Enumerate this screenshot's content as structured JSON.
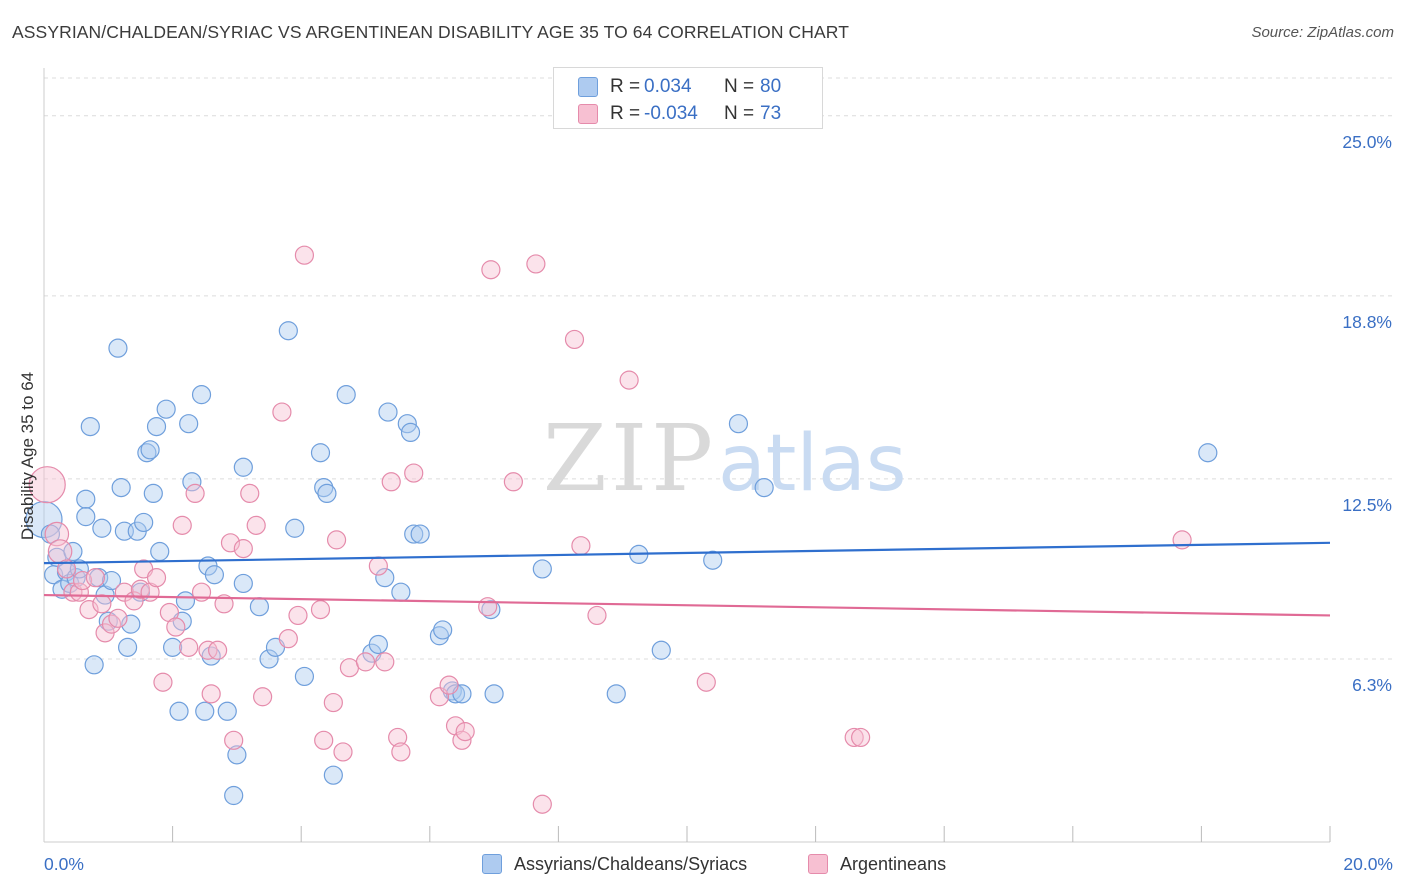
{
  "title": "ASSYRIAN/CHALDEAN/SYRIAC VS ARGENTINEAN DISABILITY AGE 35 TO 64 CORRELATION CHART",
  "source": "Source: ZipAtlas.com",
  "watermark": {
    "zip": "ZIP",
    "atlas": "atlas"
  },
  "legend": {
    "series1": {
      "r_label": "R =",
      "r_value": "0.034",
      "n_label": "N =",
      "n_value": "80"
    },
    "series2": {
      "r_label": "R =",
      "r_value": "-0.034",
      "n_label": "N =",
      "n_value": "73"
    }
  },
  "colors": {
    "series1_fill": "#aecbf0",
    "series1_stroke": "#6f9fdc",
    "series1_line": "#2f6fce",
    "series2_fill": "#f7c0d2",
    "series2_stroke": "#e58bab",
    "series2_line": "#e06a95",
    "axis_text": "#3a6fc4",
    "grid": "#dcdcdc"
  },
  "chart_data": {
    "type": "scatter",
    "title": "ASSYRIAN/CHALDEAN/SYRIAC VS ARGENTINEAN DISABILITY AGE 35 TO 64 CORRELATION CHART",
    "xlabel": "",
    "ylabel": "Disability Age 35 to 64",
    "xlim": [
      0,
      20
    ],
    "ylim": [
      0,
      26.3
    ],
    "x_tick_labels": [
      "0.0%",
      "20.0%"
    ],
    "y_ticks": [
      6.3,
      12.5,
      18.8,
      25.0
    ],
    "y_tick_labels": [
      "6.3%",
      "12.5%",
      "18.8%",
      "25.0%"
    ],
    "grid": true,
    "legend_position": "bottom",
    "series": [
      {
        "name": "Assyrians/Chaldeans/Syriacs",
        "r": 0.034,
        "n": 80,
        "trend": {
          "x": [
            0,
            20
          ],
          "y": [
            9.6,
            10.3
          ]
        },
        "points": [
          {
            "x": 0.0,
            "y": 11.1,
            "s": 2
          },
          {
            "x": 0.1,
            "y": 10.6
          },
          {
            "x": 0.15,
            "y": 9.2
          },
          {
            "x": 0.2,
            "y": 9.8
          },
          {
            "x": 0.28,
            "y": 8.7
          },
          {
            "x": 0.35,
            "y": 9.3
          },
          {
            "x": 0.4,
            "y": 8.9
          },
          {
            "x": 0.45,
            "y": 10.0
          },
          {
            "x": 0.5,
            "y": 9.1
          },
          {
            "x": 0.55,
            "y": 9.4
          },
          {
            "x": 0.65,
            "y": 11.8
          },
          {
            "x": 0.65,
            "y": 11.2
          },
          {
            "x": 0.72,
            "y": 14.3
          },
          {
            "x": 0.78,
            "y": 6.1
          },
          {
            "x": 0.85,
            "y": 9.1
          },
          {
            "x": 0.9,
            "y": 10.8
          },
          {
            "x": 0.95,
            "y": 8.5
          },
          {
            "x": 1.0,
            "y": 7.6
          },
          {
            "x": 1.05,
            "y": 9.0
          },
          {
            "x": 1.15,
            "y": 17.0
          },
          {
            "x": 1.2,
            "y": 12.2
          },
          {
            "x": 1.25,
            "y": 10.7
          },
          {
            "x": 1.3,
            "y": 6.7
          },
          {
            "x": 1.35,
            "y": 7.5
          },
          {
            "x": 1.45,
            "y": 10.7
          },
          {
            "x": 1.5,
            "y": 8.6
          },
          {
            "x": 1.55,
            "y": 11.0
          },
          {
            "x": 1.6,
            "y": 13.4
          },
          {
            "x": 1.65,
            "y": 13.5
          },
          {
            "x": 1.7,
            "y": 12.0
          },
          {
            "x": 1.75,
            "y": 14.3
          },
          {
            "x": 1.8,
            "y": 10.0
          },
          {
            "x": 1.9,
            "y": 14.9
          },
          {
            "x": 2.0,
            "y": 6.7
          },
          {
            "x": 2.1,
            "y": 4.5
          },
          {
            "x": 2.15,
            "y": 7.6
          },
          {
            "x": 2.2,
            "y": 8.3
          },
          {
            "x": 2.25,
            "y": 14.4
          },
          {
            "x": 2.3,
            "y": 12.4
          },
          {
            "x": 2.45,
            "y": 15.4
          },
          {
            "x": 2.5,
            "y": 4.5
          },
          {
            "x": 2.55,
            "y": 9.5
          },
          {
            "x": 2.6,
            "y": 6.4
          },
          {
            "x": 2.65,
            "y": 9.2
          },
          {
            "x": 2.85,
            "y": 4.5
          },
          {
            "x": 2.95,
            "y": 1.6
          },
          {
            "x": 3.0,
            "y": 3.0
          },
          {
            "x": 3.1,
            "y": 8.9
          },
          {
            "x": 3.1,
            "y": 12.9
          },
          {
            "x": 3.35,
            "y": 8.1
          },
          {
            "x": 3.5,
            "y": 6.3
          },
          {
            "x": 3.6,
            "y": 6.7
          },
          {
            "x": 3.8,
            "y": 17.6
          },
          {
            "x": 3.9,
            "y": 10.8
          },
          {
            "x": 4.05,
            "y": 5.7
          },
          {
            "x": 4.3,
            "y": 13.4
          },
          {
            "x": 4.35,
            "y": 12.2
          },
          {
            "x": 4.4,
            "y": 12.0
          },
          {
            "x": 4.5,
            "y": 2.3
          },
          {
            "x": 4.7,
            "y": 15.4
          },
          {
            "x": 5.1,
            "y": 6.5
          },
          {
            "x": 5.2,
            "y": 6.8
          },
          {
            "x": 5.3,
            "y": 9.1
          },
          {
            "x": 5.35,
            "y": 14.8
          },
          {
            "x": 5.55,
            "y": 8.6
          },
          {
            "x": 5.65,
            "y": 14.4
          },
          {
            "x": 5.7,
            "y": 14.1
          },
          {
            "x": 5.75,
            "y": 10.6
          },
          {
            "x": 5.85,
            "y": 10.6
          },
          {
            "x": 6.15,
            "y": 7.1
          },
          {
            "x": 6.2,
            "y": 7.3
          },
          {
            "x": 6.35,
            "y": 5.2
          },
          {
            "x": 6.4,
            "y": 5.1
          },
          {
            "x": 6.5,
            "y": 5.1
          },
          {
            "x": 6.95,
            "y": 8.0
          },
          {
            "x": 7.0,
            "y": 5.1
          },
          {
            "x": 7.75,
            "y": 9.4
          },
          {
            "x": 8.9,
            "y": 5.1
          },
          {
            "x": 9.25,
            "y": 9.9
          },
          {
            "x": 9.6,
            "y": 6.6
          },
          {
            "x": 10.4,
            "y": 9.7
          },
          {
            "x": 10.8,
            "y": 14.4
          },
          {
            "x": 11.2,
            "y": 12.2
          },
          {
            "x": 18.1,
            "y": 13.4
          }
        ]
      },
      {
        "name": "Argentineans",
        "r": -0.034,
        "n": 73,
        "trend": {
          "x": [
            0,
            20
          ],
          "y": [
            8.5,
            7.8
          ]
        },
        "points": [
          {
            "x": 0.05,
            "y": 12.3,
            "s": 2
          },
          {
            "x": 0.2,
            "y": 10.6,
            "s": 1.3
          },
          {
            "x": 0.25,
            "y": 10.0,
            "s": 1.3
          },
          {
            "x": 0.35,
            "y": 9.4
          },
          {
            "x": 0.45,
            "y": 8.6
          },
          {
            "x": 0.55,
            "y": 8.6
          },
          {
            "x": 0.6,
            "y": 9.0
          },
          {
            "x": 0.7,
            "y": 8.0
          },
          {
            "x": 0.8,
            "y": 9.1
          },
          {
            "x": 0.9,
            "y": 8.2
          },
          {
            "x": 0.95,
            "y": 7.2
          },
          {
            "x": 1.05,
            "y": 7.5
          },
          {
            "x": 1.15,
            "y": 7.7
          },
          {
            "x": 1.25,
            "y": 8.6
          },
          {
            "x": 1.4,
            "y": 8.3
          },
          {
            "x": 1.5,
            "y": 8.7
          },
          {
            "x": 1.55,
            "y": 9.4
          },
          {
            "x": 1.65,
            "y": 8.6
          },
          {
            "x": 1.75,
            "y": 9.1
          },
          {
            "x": 1.85,
            "y": 5.5
          },
          {
            "x": 1.95,
            "y": 7.9
          },
          {
            "x": 2.05,
            "y": 7.4
          },
          {
            "x": 2.15,
            "y": 10.9
          },
          {
            "x": 2.25,
            "y": 6.7
          },
          {
            "x": 2.35,
            "y": 12.0
          },
          {
            "x": 2.45,
            "y": 8.6
          },
          {
            "x": 2.55,
            "y": 6.6
          },
          {
            "x": 2.6,
            "y": 5.1
          },
          {
            "x": 2.7,
            "y": 6.6
          },
          {
            "x": 2.8,
            "y": 8.2
          },
          {
            "x": 2.9,
            "y": 10.3
          },
          {
            "x": 2.95,
            "y": 3.5
          },
          {
            "x": 3.1,
            "y": 10.1
          },
          {
            "x": 3.2,
            "y": 12.0
          },
          {
            "x": 3.3,
            "y": 10.9
          },
          {
            "x": 3.4,
            "y": 5.0
          },
          {
            "x": 3.7,
            "y": 14.8
          },
          {
            "x": 3.8,
            "y": 7.0
          },
          {
            "x": 3.95,
            "y": 7.8
          },
          {
            "x": 4.05,
            "y": 20.2
          },
          {
            "x": 4.3,
            "y": 8.0
          },
          {
            "x": 4.35,
            "y": 3.5
          },
          {
            "x": 4.5,
            "y": 4.8
          },
          {
            "x": 4.55,
            "y": 10.4
          },
          {
            "x": 4.65,
            "y": 3.1
          },
          {
            "x": 4.75,
            "y": 6.0
          },
          {
            "x": 5.0,
            "y": 6.2
          },
          {
            "x": 5.2,
            "y": 9.5
          },
          {
            "x": 5.3,
            "y": 6.2
          },
          {
            "x": 5.4,
            "y": 12.4
          },
          {
            "x": 5.5,
            "y": 3.6
          },
          {
            "x": 5.55,
            "y": 3.1
          },
          {
            "x": 5.75,
            "y": 12.7
          },
          {
            "x": 6.15,
            "y": 5.0
          },
          {
            "x": 6.3,
            "y": 5.4
          },
          {
            "x": 6.4,
            "y": 4.0
          },
          {
            "x": 6.5,
            "y": 3.5
          },
          {
            "x": 6.55,
            "y": 3.8
          },
          {
            "x": 6.9,
            "y": 8.1
          },
          {
            "x": 6.95,
            "y": 19.7
          },
          {
            "x": 7.3,
            "y": 12.4
          },
          {
            "x": 7.65,
            "y": 19.9
          },
          {
            "x": 7.75,
            "y": 1.3
          },
          {
            "x": 8.25,
            "y": 17.3
          },
          {
            "x": 8.35,
            "y": 10.2
          },
          {
            "x": 8.6,
            "y": 7.8
          },
          {
            "x": 9.1,
            "y": 15.9
          },
          {
            "x": 10.3,
            "y": 5.5
          },
          {
            "x": 12.6,
            "y": 3.6
          },
          {
            "x": 12.7,
            "y": 3.6
          },
          {
            "x": 17.7,
            "y": 10.4
          }
        ]
      }
    ]
  }
}
